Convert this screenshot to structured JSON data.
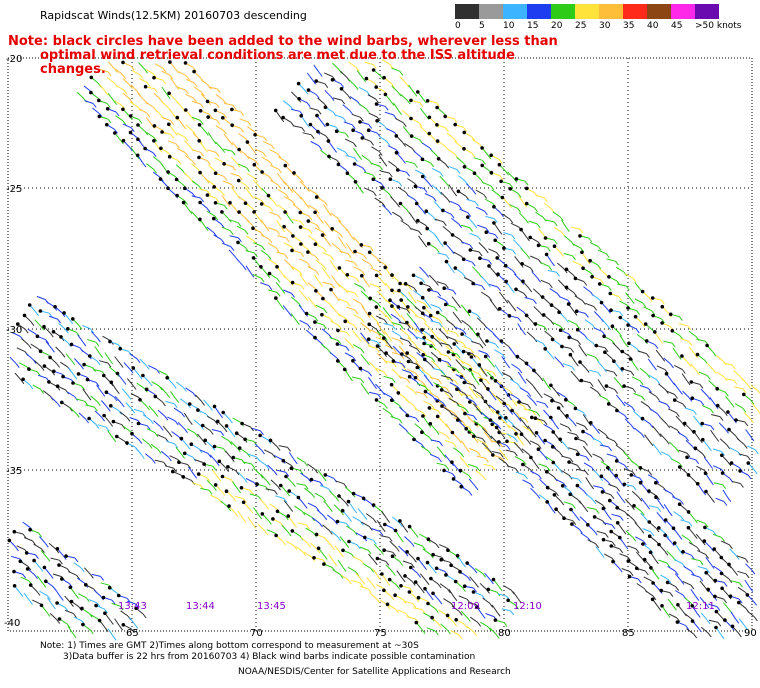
{
  "title": "Rapidscat Winds(12.5KM) 20160703 descending",
  "note_line1": "Note: black circles have been added to the wind barbs, wherever less than",
  "note_line2": "optimal wind retrieval conditions are met due to the ISS altitude changes.",
  "colorbar": {
    "labels": [
      "0",
      "5",
      "10",
      "15",
      "20",
      "25",
      "30",
      "35",
      "40",
      "45",
      ">50 knots"
    ],
    "colors": [
      "#303030",
      "#9a9a9a",
      "#3cb4ff",
      "#1e3cf0",
      "#2ecc18",
      "#ffe23a",
      "#ffbe3a",
      "#ff2a1a",
      "#8c4614",
      "#ff28e8",
      "#6a0bb0"
    ]
  },
  "map": {
    "lat_labels": [
      "-20",
      "-25",
      "-30",
      "-35",
      "-40"
    ],
    "lon_labels": [
      "65",
      "70",
      "75",
      "80",
      "85",
      "90"
    ],
    "time_labels": [
      "13:43",
      "13:44",
      "13:45",
      "12:09",
      "12:10",
      "12:11"
    ],
    "time_color": "#8800cc"
  },
  "footer": {
    "line1": "Note: 1) Times are GMT 2)Times along bottom correspond to measurement at ~30S",
    "line2": "3)Data buffer is 22 hrs from 20160703 4) Black wind barbs indicate possible contamination",
    "line3": "NOAA/NESDIS/Center for Satellite Applications and Research"
  }
}
